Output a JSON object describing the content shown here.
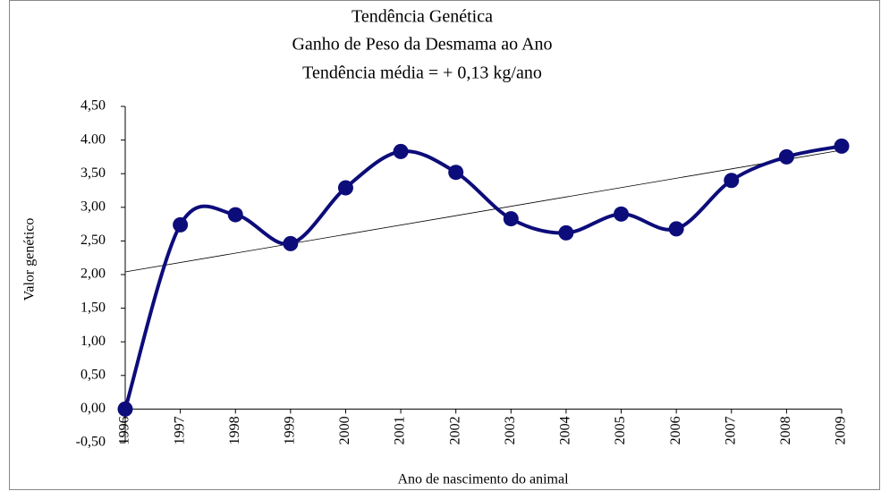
{
  "chart_data": {
    "type": "line",
    "title": [
      "Tendência Genética",
      "Ganho de Peso da Desmama ao Ano",
      "Tendência média = + 0,13 kg/ano"
    ],
    "x_label": "Ano de nascimento do animal",
    "y_label": "Valor genético",
    "categories": [
      "1996",
      "1997",
      "1998",
      "1999",
      "2000",
      "2001",
      "2002",
      "2003",
      "2004",
      "2005",
      "2006",
      "2007",
      "2008",
      "2009"
    ],
    "series": [
      {
        "name": "Valor genético",
        "color": "#0c0c7a",
        "values": [
          0,
          2.74,
          2.89,
          2.46,
          3.29,
          3.83,
          3.52,
          2.83,
          2.62,
          2.9,
          2.68,
          3.4,
          3.75,
          3.91
        ]
      }
    ],
    "trendline": {
      "color": "#000000",
      "values": [
        2.04,
        3.85
      ]
    },
    "ylim": [
      -0.5,
      4.5
    ],
    "yticks": [
      {
        "value": -0.5,
        "label": "-0,50"
      },
      {
        "value": 0,
        "label": "0,00"
      },
      {
        "value": 0.5,
        "label": "0,50"
      },
      {
        "value": 1,
        "label": "1,00"
      },
      {
        "value": 1.5,
        "label": "1,50"
      },
      {
        "value": 2,
        "label": "2,00"
      },
      {
        "value": 2.5,
        "label": "2,50"
      },
      {
        "value": 3,
        "label": "3,00"
      },
      {
        "value": 3.5,
        "label": "3,50"
      },
      {
        "value": 4,
        "label": "4.00"
      },
      {
        "value": 4.5,
        "label": "4,50"
      }
    ],
    "grid": false
  }
}
